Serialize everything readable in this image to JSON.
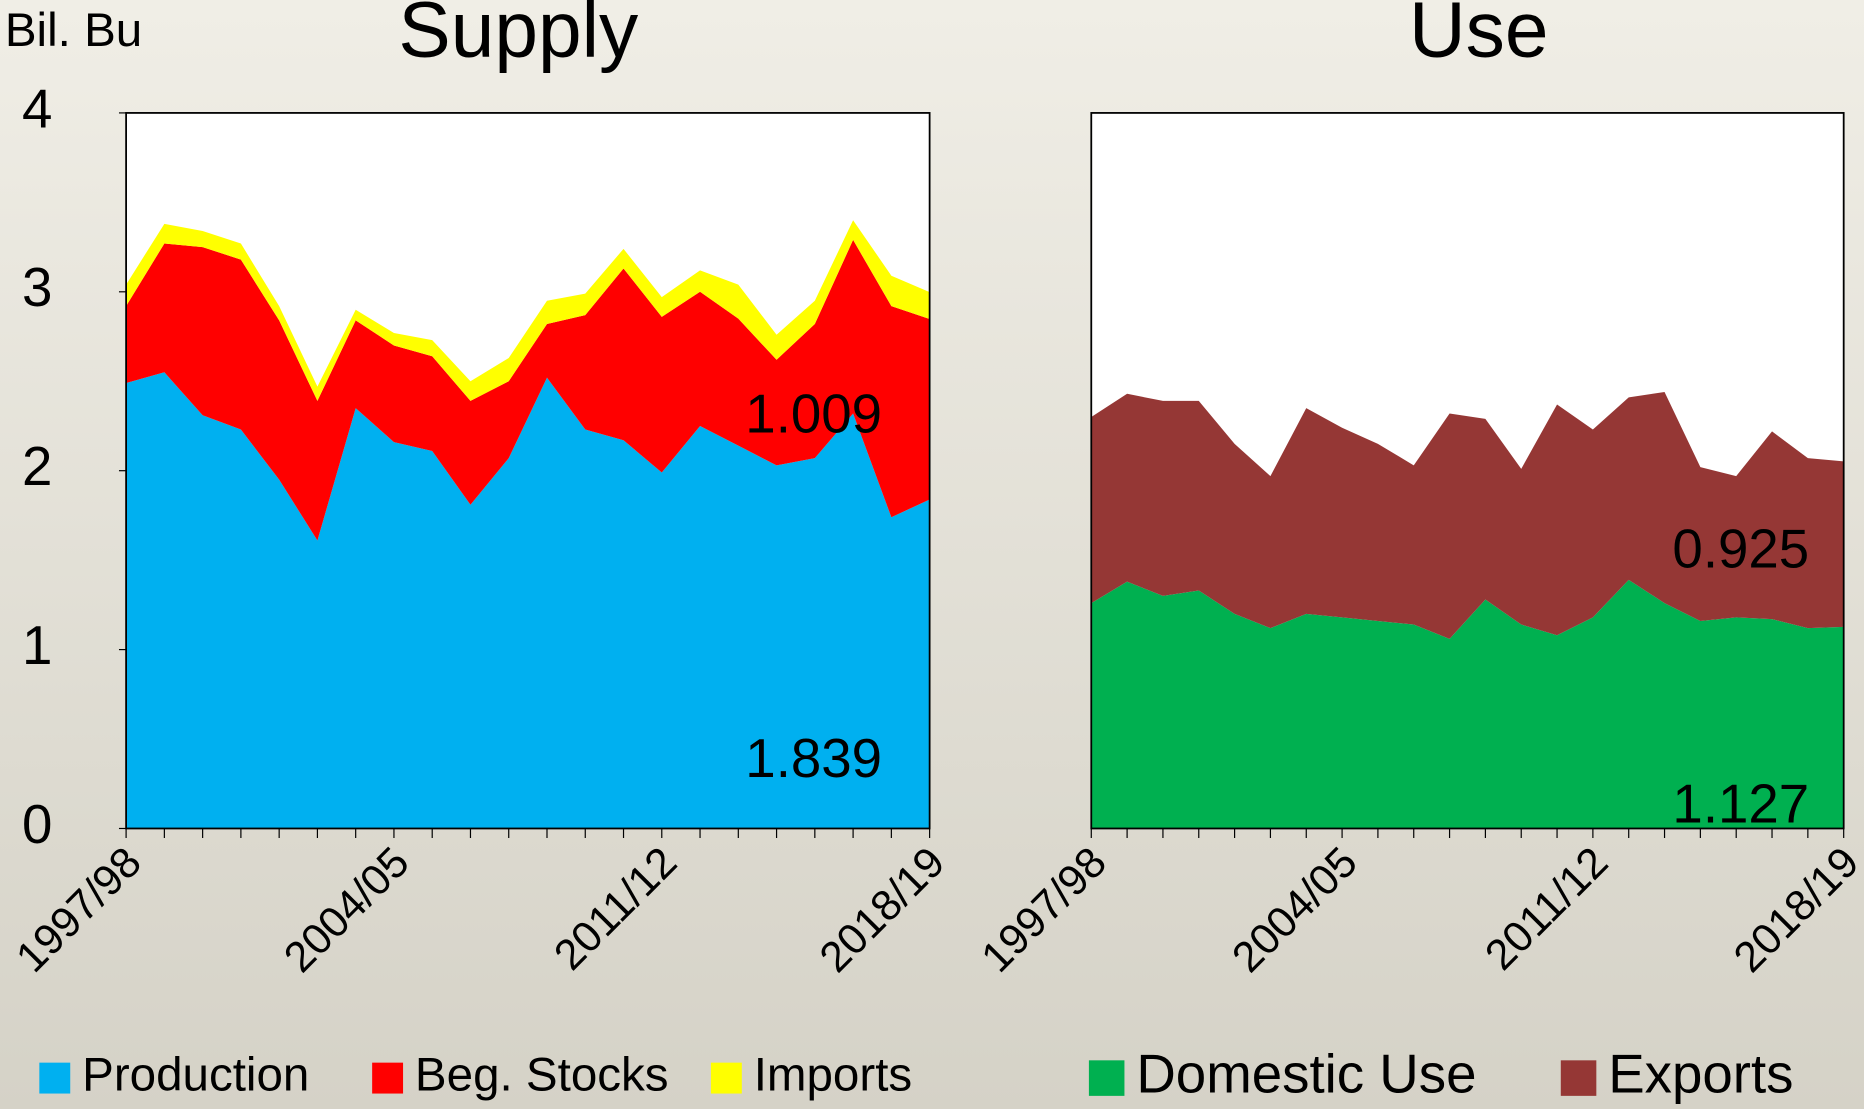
{
  "chart_data": [
    {
      "type": "area",
      "stacked": true,
      "title": "Supply",
      "y_label": "Bil. Bu",
      "categories": [
        "1997/98",
        null,
        null,
        null,
        null,
        null,
        null,
        "2004/05",
        null,
        null,
        null,
        null,
        null,
        null,
        "2011/12",
        null,
        null,
        null,
        null,
        null,
        null,
        "2018/19"
      ],
      "ylim": [
        0,
        4
      ],
      "yticks": [
        0,
        1,
        2,
        3,
        4
      ],
      "series": [
        {
          "name": "Production",
          "color": "#00b0f0",
          "values": [
            2.49,
            2.55,
            2.31,
            2.23,
            1.95,
            1.61,
            2.35,
            2.16,
            2.11,
            1.81,
            2.07,
            2.52,
            2.23,
            2.17,
            1.99,
            2.25,
            2.14,
            2.03,
            2.07,
            2.32,
            1.74,
            1.839
          ]
        },
        {
          "name": "Beg. Stocks",
          "color": "#ff0000",
          "values": [
            0.43,
            0.72,
            0.94,
            0.95,
            0.89,
            0.78,
            0.49,
            0.54,
            0.53,
            0.58,
            0.43,
            0.3,
            0.64,
            0.96,
            0.87,
            0.75,
            0.71,
            0.59,
            0.75,
            0.97,
            1.18,
            1.009
          ]
        },
        {
          "name": "Imports",
          "color": "#ffff00",
          "values": [
            0.12,
            0.11,
            0.09,
            0.09,
            0.08,
            0.08,
            0.06,
            0.07,
            0.09,
            0.11,
            0.13,
            0.13,
            0.12,
            0.11,
            0.11,
            0.12,
            0.19,
            0.14,
            0.13,
            0.11,
            0.17,
            0.15
          ]
        }
      ]
    },
    {
      "type": "area",
      "stacked": true,
      "title": "Use",
      "categories": [
        "1997/98",
        null,
        null,
        null,
        null,
        null,
        null,
        "2004/05",
        null,
        null,
        null,
        null,
        null,
        null,
        "2011/12",
        null,
        null,
        null,
        null,
        null,
        null,
        "2018/19"
      ],
      "ylim": [
        0,
        4
      ],
      "series": [
        {
          "name": "Domestic Use",
          "color": "#00b050",
          "values": [
            1.26,
            1.38,
            1.3,
            1.33,
            1.2,
            1.12,
            1.2,
            1.18,
            1.16,
            1.14,
            1.06,
            1.28,
            1.14,
            1.08,
            1.18,
            1.39,
            1.26,
            1.16,
            1.18,
            1.17,
            1.12,
            1.127
          ]
        },
        {
          "name": "Exports",
          "color": "#953735",
          "values": [
            1.04,
            1.05,
            1.09,
            1.06,
            0.95,
            0.85,
            1.15,
            1.06,
            0.99,
            0.89,
            1.26,
            1.01,
            0.87,
            1.29,
            1.05,
            1.02,
            1.18,
            0.86,
            0.79,
            1.05,
            0.95,
            0.925
          ]
        }
      ]
    }
  ]
}
